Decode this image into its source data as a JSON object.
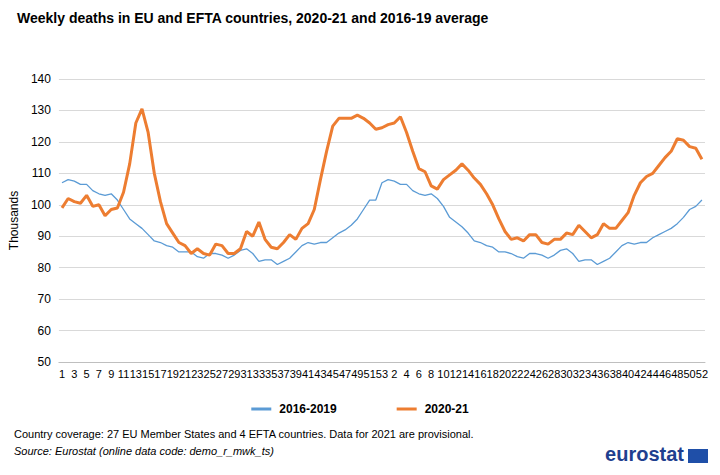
{
  "chart_data": {
    "type": "line",
    "title": "Weekly deaths in EU and EFTA countries, 2020-21 and 2016-19 average",
    "y_label": "Thousands",
    "notes": [
      "Country coverage: 27 EU Member States and 4 EFTA countries. Data for 2021 are provisional.",
      "Source: Eurostat (online data code: demo_r_mwk_ts)"
    ],
    "logo": "eurostat",
    "categories": [
      "1",
      null,
      "3",
      null,
      "5",
      null,
      "7",
      null,
      "9",
      null,
      "11",
      null,
      "13",
      null,
      "15",
      null,
      "17",
      null,
      "19",
      null,
      "21",
      null,
      "23",
      null,
      "25",
      null,
      "27",
      null,
      "29",
      null,
      "31",
      null,
      "33",
      null,
      "35",
      null,
      "37",
      null,
      "39",
      null,
      "41",
      null,
      "43",
      null,
      "45",
      null,
      "47",
      null,
      "49",
      null,
      "51",
      null,
      "53",
      null,
      "2",
      null,
      "4",
      null,
      "6",
      null,
      "8",
      null,
      "10",
      null,
      "12",
      null,
      "14",
      null,
      "16",
      null,
      "18",
      null,
      "20",
      null,
      "22",
      null,
      "24",
      null,
      "26",
      null,
      "28",
      null,
      "30",
      null,
      "32",
      null,
      "34",
      null,
      "36",
      null,
      "38",
      null,
      "40",
      null,
      "42",
      null,
      "44",
      null,
      "46",
      null,
      "48",
      null,
      "50",
      null,
      "52"
    ],
    "series": [
      {
        "name": "2016-2019",
        "color": "#5b9bd5",
        "values": [
          107,
          108,
          107.5,
          106.5,
          106.5,
          104.5,
          103.5,
          103,
          103.5,
          101.5,
          98.5,
          95.5,
          94,
          92.5,
          90.5,
          88.5,
          88,
          87,
          86.5,
          85,
          85,
          85,
          83.5,
          83,
          84.5,
          84.5,
          84,
          83,
          84,
          85.5,
          86,
          84.5,
          82,
          82.5,
          82.5,
          81,
          82,
          83,
          85,
          87,
          88,
          87.5,
          88,
          88,
          89.5,
          91,
          92,
          93.5,
          95.5,
          98.5,
          101.5,
          101.5,
          107,
          108,
          107.5,
          106.5,
          106.5,
          104.5,
          103.5,
          103,
          103.5,
          102,
          99.5,
          96,
          94.5,
          93,
          91,
          88.5,
          88,
          87,
          86.5,
          85,
          85,
          84.5,
          83.5,
          83,
          84.5,
          84.5,
          84,
          83,
          84,
          85.5,
          86,
          84.5,
          82,
          82.5,
          82.5,
          81,
          82,
          83,
          85,
          87,
          88,
          87.5,
          88,
          88,
          89.5,
          90.5,
          91.5,
          92.5,
          94,
          96,
          98.5,
          99.5,
          101.5
        ]
      },
      {
        "name": "2020-21",
        "color": "#ed7d31",
        "values": [
          99,
          102,
          101,
          100.5,
          103,
          99.5,
          100,
          96.5,
          98.5,
          99,
          104,
          113,
          126,
          130.5,
          123,
          110,
          101,
          94,
          91,
          88,
          87,
          84.5,
          86,
          84.5,
          84,
          87.5,
          87,
          84.5,
          84.5,
          86,
          91.5,
          90,
          94.5,
          89,
          86.5,
          86,
          88,
          90.5,
          89,
          92.5,
          94,
          98.5,
          108,
          117,
          125,
          127.5,
          127.5,
          127.5,
          128.5,
          127.5,
          126,
          124,
          124.5,
          125.5,
          126,
          128,
          123,
          117,
          111.5,
          110.5,
          106,
          105,
          108,
          109.5,
          111,
          113,
          111,
          108.5,
          106.5,
          103.5,
          100,
          95.5,
          91.5,
          89,
          89.5,
          88.5,
          90.5,
          90.5,
          88,
          87.5,
          89,
          89,
          91,
          90.5,
          93.5,
          91.5,
          89.5,
          90.5,
          94,
          92.5,
          92.5,
          95,
          97.5,
          103,
          107,
          109,
          110,
          112.5,
          115,
          117,
          121,
          120.5,
          118.5,
          118,
          114.5
        ]
      }
    ],
    "ylim": [
      50,
      140
    ],
    "yticks": [
      50,
      60,
      70,
      80,
      90,
      100,
      110,
      120,
      130,
      140
    ],
    "grid": true,
    "legend": "bottom"
  }
}
